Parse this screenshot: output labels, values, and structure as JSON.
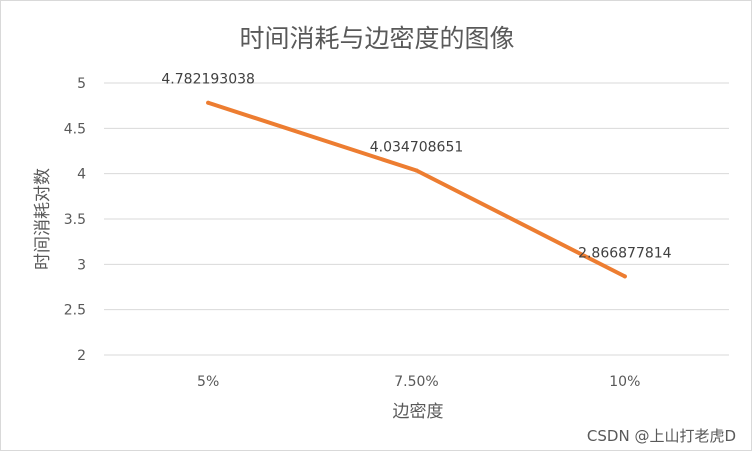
{
  "chart_data": {
    "type": "line",
    "title": "时间消耗与边密度的图像",
    "xlabel": "边密度",
    "ylabel": "时间消耗对数",
    "categories": [
      "5%",
      "7.50%",
      "10%"
    ],
    "series": [
      {
        "values": [
          4.782193038,
          4.034708651,
          2.866877814
        ],
        "labels": [
          "4.782193038",
          "4.034708651",
          "2.866877814"
        ],
        "color": "#ED7D31"
      }
    ],
    "ylim": [
      2,
      5
    ],
    "yticks": [
      "2",
      "2.5",
      "3",
      "3.5",
      "4",
      "4.5",
      "5"
    ],
    "grid": true
  },
  "watermark": "CSDN @上山打老虎D"
}
